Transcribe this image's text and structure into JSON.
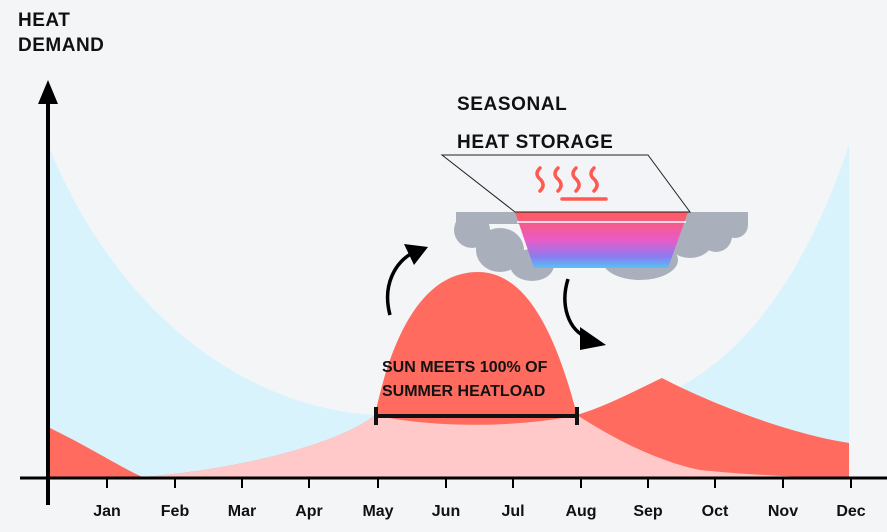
{
  "y_axis_label": [
    "HEAT",
    "DEMAND"
  ],
  "storage_label": [
    "SEASONAL",
    "HEAT STORAGE"
  ],
  "sun_annotation": [
    "SUN MEETS 100% OF",
    "SUMMER HEATLOAD"
  ],
  "months": [
    "Jan",
    "Feb",
    "Mar",
    "Apr",
    "May",
    "Jun",
    "Jul",
    "Aug",
    "Sep",
    "Oct",
    "Nov",
    "Dec"
  ],
  "colors": {
    "heat_demand_fill": "#d9f3fc",
    "solar_fill": "#ff6b5f",
    "overlap_fill": "#ffc9c9",
    "ground_gray": "#aab0bb",
    "axis": "#000000"
  },
  "icons": [
    "heat-waves-icon",
    "arrow-up-right-icon",
    "arrow-down-right-icon"
  ]
}
